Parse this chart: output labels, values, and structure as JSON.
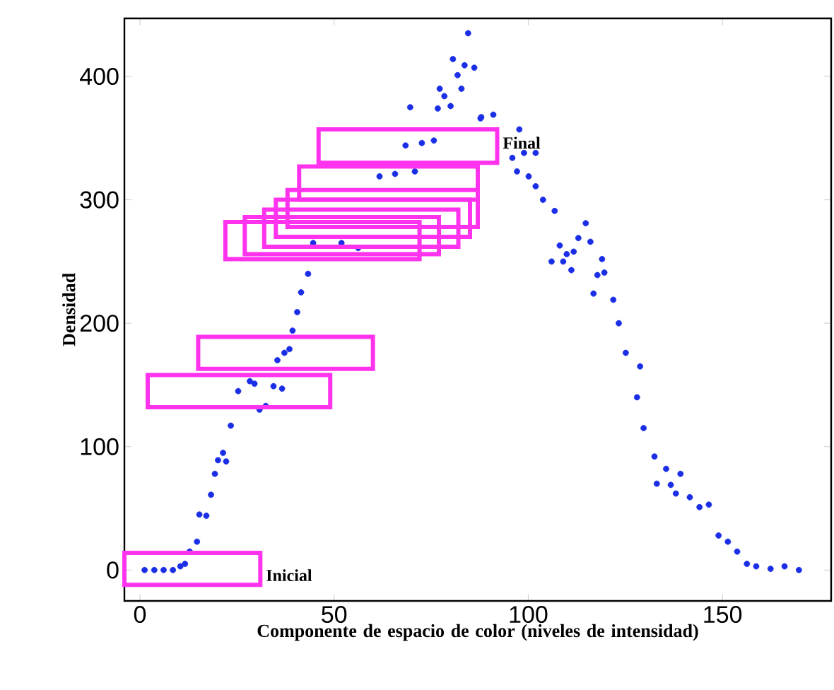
{
  "chart_data": {
    "type": "scatter",
    "xlabel": "Componente de espacio de color (niveles de intensidad)",
    "ylabel": "Densidad",
    "xlim": [
      -4,
      178
    ],
    "ylim": [
      -25,
      447
    ],
    "xticks": [
      0,
      50,
      100,
      150
    ],
    "yticks": [
      0,
      100,
      200,
      300,
      400
    ],
    "marker": "circle",
    "annotations": [
      "Inicial",
      "Final"
    ],
    "series": [
      {
        "color": "#1a2ee6",
        "x": [
          1.2,
          3.7,
          6.1,
          8.5,
          10.4,
          11.6,
          12.8,
          14.7,
          15.3,
          17.1,
          18.3,
          19.3,
          20.1,
          21.4,
          22.2,
          23.4,
          25.3,
          28.3,
          29.5,
          30.8,
          32.4,
          34.4,
          36.6,
          35.4,
          37.2,
          38.5,
          39.3,
          40.5,
          41.5,
          43.3,
          44.6,
          51.9,
          56.2,
          61.7,
          65.7,
          70.8,
          68.4,
          72.6,
          75.7,
          69.6,
          76.7,
          80.0,
          77.2,
          78.4,
          82.8,
          80.6,
          81.8,
          83.6,
          86.1,
          84.5,
          87.7,
          87.9,
          91.0,
          97.7,
          98.9,
          101.9,
          95.9,
          97.1,
          100.1,
          101.9,
          103.8,
          106.8,
          114.8,
          112.9,
          116.0,
          108.1,
          111.7,
          109.9,
          106.0,
          109.0,
          111.1,
          119.0,
          119.6,
          117.8,
          116.8,
          121.9,
          123.3,
          125.1,
          128.8,
          128.0,
          129.7,
          132.5,
          135.5,
          133.1,
          139.2,
          136.7,
          138.0,
          141.6,
          144.1,
          146.5,
          149.0,
          151.4,
          153.8,
          156.3,
          158.7,
          162.4,
          166.0,
          169.7
        ],
        "values": [
          0,
          0,
          0,
          0,
          3,
          5,
          15,
          23,
          45,
          44,
          61,
          78,
          89,
          95,
          88,
          117,
          145,
          153,
          151,
          130,
          133,
          149,
          147,
          170,
          176,
          179,
          194,
          209,
          225,
          240,
          265,
          265,
          261,
          319,
          321,
          323,
          344,
          346,
          348,
          375,
          374,
          376,
          390,
          384,
          390,
          414,
          401,
          409,
          407,
          435,
          366,
          367,
          369,
          357,
          338,
          338,
          334,
          323,
          319,
          311,
          300,
          291,
          281,
          269,
          266,
          263,
          258,
          256,
          250,
          250,
          243,
          252,
          241,
          239,
          224,
          219,
          200,
          176,
          165,
          140,
          115,
          92,
          82,
          70,
          78,
          69,
          62,
          59,
          51,
          53,
          28,
          23,
          15,
          5,
          3,
          1,
          3,
          0
        ]
      }
    ]
  }
}
